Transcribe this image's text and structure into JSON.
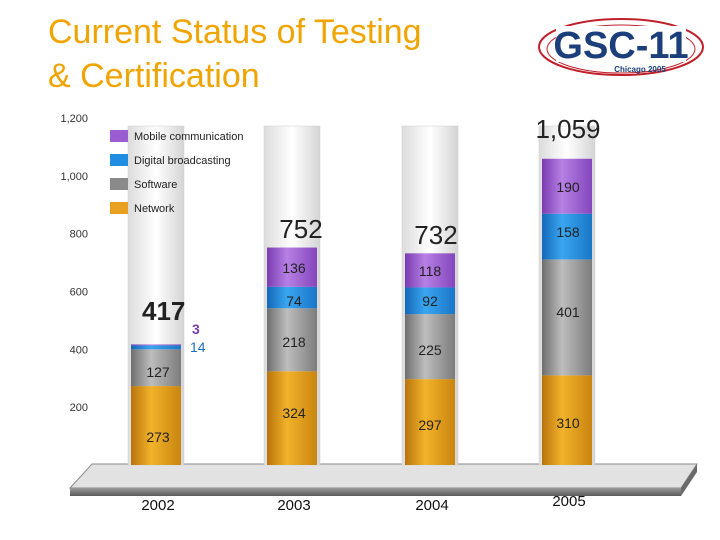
{
  "slide": {
    "title_line1": "Current Status of Testing",
    "title_line2": "& Certification"
  },
  "logo": {
    "name": "GSC-11",
    "subtitle": "Chicago 2005",
    "colors": {
      "red": "#c0202a",
      "blue": "#1c3f7c"
    }
  },
  "chart_data": {
    "type": "bar",
    "stacked": true,
    "title": "",
    "xlabel": "",
    "ylabel": "",
    "ylim": [
      0,
      1200
    ],
    "yticks": [
      200,
      400,
      600,
      800,
      1000,
      1200
    ],
    "ytick_labels": [
      "200",
      "400",
      "600",
      "800",
      "1,000",
      "1,200"
    ],
    "categories": [
      "2002",
      "2003",
      "2004",
      "2005"
    ],
    "series": [
      {
        "name": "Network",
        "values": [
          273,
          324,
          297,
          310
        ],
        "color": "#e8a020"
      },
      {
        "name": "Software",
        "values": [
          127,
          218,
          225,
          401
        ],
        "color": "#9a9a9a"
      },
      {
        "name": "Digital broadcasting",
        "values": [
          14,
          74,
          92,
          158
        ],
        "color": "#1f8de0"
      },
      {
        "name": "Mobile communication",
        "values": [
          3,
          136,
          118,
          190
        ],
        "color": "#9a5cd0"
      }
    ],
    "totals": [
      417,
      752,
      732,
      1059
    ],
    "total_labels": [
      "417",
      "752",
      "732",
      "1,059"
    ],
    "segment_labels": [
      [
        "273",
        "127",
        "14",
        "3"
      ],
      [
        "324",
        "218",
        "74",
        "136"
      ],
      [
        "297",
        "225",
        "92",
        "118"
      ],
      [
        "310",
        "401",
        "158",
        "190"
      ]
    ],
    "legend": [
      {
        "name": "Mobile communication",
        "color": "#9a5cd0"
      },
      {
        "name": "Digital broadcasting",
        "color": "#1f8de0"
      },
      {
        "name": "Software",
        "color": "#8a8a8a"
      },
      {
        "name": "Network",
        "color": "#e8a020"
      }
    ],
    "legend_position": "top-left"
  }
}
